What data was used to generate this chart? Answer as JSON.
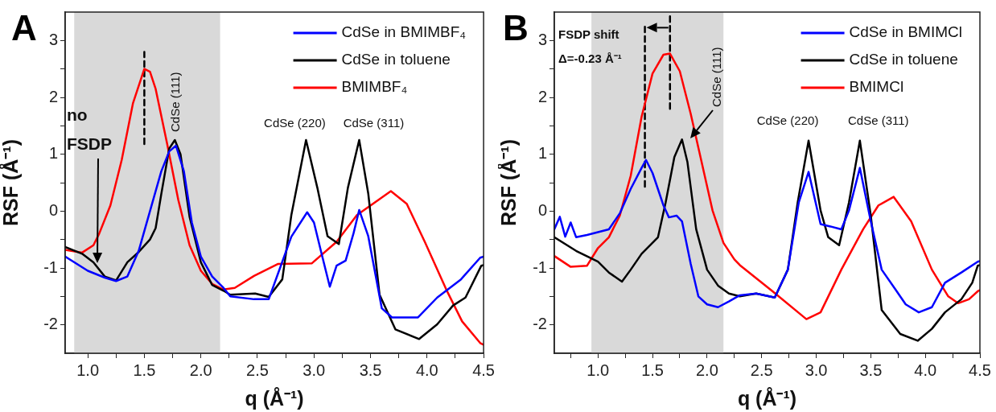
{
  "chart_data": [
    {
      "type": "line",
      "title": "A",
      "xlabel": "q (Å⁻¹)",
      "ylabel": "RSF (Å⁻¹)",
      "marker": "none",
      "grid": false,
      "legend": "top right",
      "xlim": [
        0.8,
        4.5
      ],
      "ylim": [
        -2.5,
        3.5
      ],
      "xticks": [
        {
          "value": 1,
          "label": "1.0"
        },
        {
          "value": 1.25,
          "label": null
        },
        {
          "value": 1.5,
          "label": "1.5"
        },
        {
          "value": 1.75,
          "label": null
        },
        {
          "value": 2,
          "label": "2.0"
        },
        {
          "value": 2.25,
          "label": null
        },
        {
          "value": 2.5,
          "label": "2.5"
        },
        {
          "value": 2.75,
          "label": null
        },
        {
          "value": 3,
          "label": "3.0"
        },
        {
          "value": 3.25,
          "label": null
        },
        {
          "value": 3.5,
          "label": "3.5"
        },
        {
          "value": 3.75,
          "label": null
        },
        {
          "value": 4,
          "label": "4.0"
        },
        {
          "value": 4.25,
          "label": null
        },
        {
          "value": 4.5,
          "label": "4.5"
        }
      ],
      "yticks": [
        -2,
        {
          "value": -1.5,
          "label": null
        },
        -1,
        {
          "value": -0.5,
          "label": null
        },
        0,
        {
          "value": 0.5,
          "label": null
        },
        1,
        {
          "value": 1.5,
          "label": null
        },
        2,
        {
          "value": 2.5,
          "label": null
        },
        3
      ],
      "bands": [
        {
          "axis": "x",
          "from": 0.88,
          "to": 2.17,
          "color": "#d9d9d9"
        }
      ],
      "annotations": [
        "no FSDP",
        {
          "text": "CdSe (111)",
          "x": 1.78,
          "y": 1.25
        },
        {
          "text": "CdSe (220)",
          "x": 2.93,
          "y": 1.25
        },
        {
          "text": "CdSe (311)",
          "x": 3.4,
          "y": 1.25
        }
      ],
      "series": [
        {
          "name": "CdSe in BMIMBF₄",
          "color": "#0000ff",
          "x": [
            0.8,
            1.0,
            1.15,
            1.25,
            1.35,
            1.45,
            1.55,
            1.65,
            1.72,
            1.78,
            1.85,
            1.92,
            2.0,
            2.1,
            2.2,
            2.26,
            2.47,
            2.6,
            2.7,
            2.8,
            2.94,
            3.0,
            3.07,
            3.14,
            3.2,
            3.28,
            3.35,
            3.4,
            3.48,
            3.6,
            3.69,
            3.92,
            4.09,
            4.3,
            4.47,
            4.5
          ],
          "values": [
            -0.8,
            -1.05,
            -1.17,
            -1.23,
            -1.15,
            -0.7,
            0.0,
            0.7,
            1.05,
            1.15,
            0.7,
            -0.2,
            -0.8,
            -1.15,
            -1.35,
            -1.5,
            -1.55,
            -1.55,
            -1.0,
            -0.45,
            -0.02,
            -0.2,
            -0.77,
            -1.33,
            -0.96,
            -0.87,
            -0.39,
            0.02,
            -0.44,
            -1.71,
            -1.87,
            -1.87,
            -1.52,
            -1.2,
            -0.82,
            -0.8
          ]
        },
        {
          "name": "CdSe in toluene",
          "color": "#000000",
          "x": [
            0.8,
            0.95,
            1.05,
            1.15,
            1.25,
            1.35,
            1.45,
            1.55,
            1.6,
            1.65,
            1.72,
            1.77,
            1.82,
            1.9,
            2.0,
            2.1,
            2.2,
            2.26,
            2.48,
            2.6,
            2.72,
            2.8,
            2.93,
            3.03,
            3.12,
            3.22,
            3.3,
            3.4,
            3.48,
            3.58,
            3.72,
            3.93,
            4.09,
            4.23,
            4.34,
            4.48,
            4.5
          ],
          "values": [
            -0.63,
            -0.75,
            -0.9,
            -1.15,
            -1.22,
            -0.9,
            -0.72,
            -0.5,
            -0.3,
            0.3,
            1.1,
            1.25,
            1.0,
            -0.1,
            -0.9,
            -1.3,
            -1.4,
            -1.47,
            -1.45,
            -1.51,
            -1.2,
            -0.07,
            1.25,
            0.41,
            -0.44,
            -0.58,
            0.41,
            1.25,
            0.31,
            -1.47,
            -2.08,
            -2.25,
            -1.99,
            -1.66,
            -1.52,
            -0.96,
            -0.95
          ]
        },
        {
          "name": "BMIMBF₄",
          "color": "#ff0000",
          "x": [
            0.8,
            0.95,
            1.05,
            1.1,
            1.2,
            1.3,
            1.4,
            1.5,
            1.55,
            1.6,
            1.7,
            1.8,
            1.9,
            2.0,
            2.1,
            2.2,
            2.3,
            2.47,
            2.68,
            2.98,
            3.2,
            3.38,
            3.68,
            3.82,
            3.98,
            4.17,
            4.31,
            4.47,
            4.5
          ],
          "values": [
            -0.68,
            -0.73,
            -0.6,
            -0.4,
            0.1,
            0.9,
            1.9,
            2.5,
            2.45,
            2.15,
            1.2,
            0.2,
            -0.6,
            -1.05,
            -1.28,
            -1.38,
            -1.35,
            -1.14,
            -0.93,
            -0.92,
            -0.54,
            -0.07,
            0.35,
            0.13,
            -0.54,
            -1.38,
            -1.94,
            -2.32,
            -2.35
          ]
        },
        {
          "type": "line",
          "color": "#000000",
          "line_style": "dashed",
          "x": [
            1.5,
            1.5
          ],
          "values": [
            1.18,
            2.8
          ]
        }
      ]
    },
    {
      "type": "line",
      "title": "B",
      "xlabel": "q (Å⁻¹)",
      "ylabel": "RSF (Å⁻¹)",
      "marker": "none",
      "grid": false,
      "legend": "top right",
      "xlim": [
        0.6,
        4.5
      ],
      "ylim": [
        -2.5,
        3.5
      ],
      "xticks": [
        {
          "value": 0.75,
          "label": null
        },
        {
          "value": 1,
          "label": "1.0"
        },
        {
          "value": 1.25,
          "label": null
        },
        {
          "value": 1.5,
          "label": "1.5"
        },
        {
          "value": 1.75,
          "label": null
        },
        {
          "value": 2,
          "label": "2.0"
        },
        {
          "value": 2.25,
          "label": null
        },
        {
          "value": 2.5,
          "label": "2.5"
        },
        {
          "value": 2.75,
          "label": null
        },
        {
          "value": 3,
          "label": "3.0"
        },
        {
          "value": 3.25,
          "label": null
        },
        {
          "value": 3.5,
          "label": "3.5"
        },
        {
          "value": 3.75,
          "label": null
        },
        {
          "value": 4,
          "label": "4.0"
        },
        {
          "value": 4.25,
          "label": null
        },
        {
          "value": 4.5,
          "label": "4.5"
        }
      ],
      "yticks": [
        -2,
        {
          "value": -1.5,
          "label": null
        },
        -1,
        {
          "value": -0.5,
          "label": null
        },
        0,
        {
          "value": 0.5,
          "label": null
        },
        1,
        {
          "value": 1.5,
          "label": null
        },
        2,
        {
          "value": 2.5,
          "label": null
        },
        3
      ],
      "bands": [
        {
          "axis": "x",
          "from": 0.94,
          "to": 2.15,
          "color": "#d9d9d9"
        }
      ],
      "annotations": [
        "FSDP shift",
        "Δ=-0.23 Å⁻¹",
        "CdSe (111)",
        {
          "text": "CdSe (220)",
          "x": 2.93,
          "y": 1.24
        },
        {
          "text": "CdSe (311)",
          "x": 3.4,
          "y": 1.24
        }
      ],
      "series": [
        {
          "name": "CdSe in BMIMCl",
          "color": "#0000ff",
          "x": [
            0.6,
            0.65,
            0.7,
            0.75,
            0.8,
            0.9,
            1.0,
            1.1,
            1.2,
            1.3,
            1.4,
            1.44,
            1.5,
            1.6,
            1.65,
            1.72,
            1.77,
            1.85,
            1.92,
            2.0,
            2.1,
            2.2,
            2.3,
            2.45,
            2.62,
            2.74,
            2.84,
            2.93,
            3.04,
            3.13,
            3.23,
            3.3,
            3.4,
            3.5,
            3.6,
            3.72,
            3.82,
            3.94,
            4.06,
            4.18,
            4.33,
            4.48,
            4.5
          ],
          "values": [
            -0.32,
            -0.1,
            -0.45,
            -0.2,
            -0.46,
            -0.42,
            -0.37,
            -0.32,
            -0.04,
            0.39,
            0.76,
            0.9,
            0.67,
            0.1,
            -0.11,
            -0.08,
            -0.18,
            -0.93,
            -1.5,
            -1.64,
            -1.69,
            -1.59,
            -1.48,
            -1.45,
            -1.52,
            -1.03,
            0.15,
            0.69,
            -0.23,
            -0.27,
            -0.32,
            0.01,
            0.76,
            -0.18,
            -1.03,
            -1.36,
            -1.64,
            -1.78,
            -1.69,
            -1.26,
            -1.08,
            -0.89,
            -0.88
          ]
        },
        {
          "name": "CdSe in toluene",
          "color": "#000000",
          "x": [
            0.6,
            0.8,
            1.0,
            1.1,
            1.22,
            1.3,
            1.4,
            1.55,
            1.62,
            1.7,
            1.77,
            1.82,
            1.9,
            2.0,
            2.1,
            2.2,
            2.3,
            2.45,
            2.62,
            2.74,
            2.83,
            2.93,
            3.04,
            3.11,
            3.21,
            3.3,
            3.4,
            3.5,
            3.6,
            3.77,
            3.93,
            4.06,
            4.18,
            4.33,
            4.43,
            4.48,
            4.5
          ],
          "values": [
            -0.46,
            -0.7,
            -0.89,
            -1.08,
            -1.24,
            -1.03,
            -0.75,
            -0.46,
            0.15,
            0.95,
            1.26,
            0.86,
            -0.32,
            -1.03,
            -1.31,
            -1.45,
            -1.5,
            -1.45,
            -1.52,
            -1.03,
            0.15,
            1.24,
            0.01,
            -0.46,
            -0.6,
            0.15,
            1.24,
            -0.08,
            -1.74,
            -2.16,
            -2.28,
            -2.07,
            -1.78,
            -1.55,
            -1.26,
            -0.96,
            -0.95
          ]
        },
        {
          "name": "BMIMCl",
          "color": "#ff0000",
          "x": [
            0.6,
            0.75,
            0.9,
            1.0,
            1.1,
            1.2,
            1.3,
            1.4,
            1.5,
            1.6,
            1.66,
            1.75,
            1.85,
            1.95,
            2.05,
            2.15,
            2.25,
            2.3,
            2.6,
            2.91,
            3.04,
            3.23,
            3.43,
            3.57,
            3.71,
            3.87,
            4.06,
            4.21,
            4.3,
            4.4,
            4.48,
            4.5
          ],
          "values": [
            -0.79,
            -0.98,
            -0.96,
            -0.65,
            -0.46,
            -0.08,
            0.62,
            1.66,
            2.42,
            2.75,
            2.77,
            2.46,
            1.71,
            0.86,
            0.01,
            -0.56,
            -0.85,
            -0.95,
            -1.41,
            -1.9,
            -1.78,
            -1.03,
            -0.32,
            0.1,
            0.25,
            -0.18,
            -1.03,
            -1.5,
            -1.62,
            -1.55,
            -1.41,
            -1.39
          ]
        },
        {
          "type": "line",
          "color": "#000000",
          "line_style": "dashed",
          "x": [
            1.43,
            1.43
          ],
          "values": [
            0.43,
            3.24
          ]
        },
        {
          "type": "line",
          "color": "#000000",
          "line_style": "dashed",
          "x": [
            1.66,
            1.66
          ],
          "values": [
            1.8,
            3.45
          ]
        }
      ]
    }
  ]
}
